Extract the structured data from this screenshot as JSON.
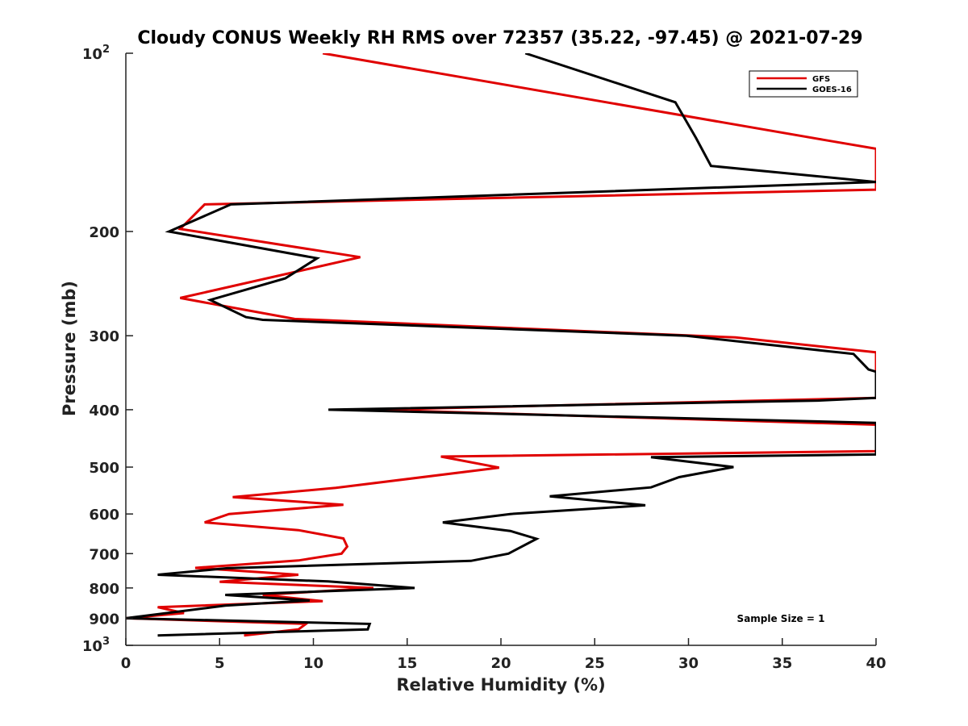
{
  "chart_data": {
    "type": "line",
    "title": "Cloudy CONUS Weekly RH RMS over 72357 (35.22, -97.45) @ 2021-07-29",
    "xlabel": "Relative Humidity (%)",
    "ylabel": "Pressure (mb)",
    "xlim": [
      0,
      40
    ],
    "ylim": [
      1000,
      100
    ],
    "yscale": "log",
    "y_reversed": true,
    "x_ticks": [
      "0",
      "5",
      "10",
      "15",
      "20",
      "25",
      "30",
      "35",
      "40"
    ],
    "y_ticks": [
      {
        "value": 100,
        "base": "10",
        "exp": "2"
      },
      {
        "value": 200,
        "label": "200"
      },
      {
        "value": 300,
        "label": "300"
      },
      {
        "value": 400,
        "label": "400"
      },
      {
        "value": 500,
        "label": "500"
      },
      {
        "value": 600,
        "label": "600"
      },
      {
        "value": 700,
        "label": "700"
      },
      {
        "value": 800,
        "label": "800"
      },
      {
        "value": 900,
        "label": "900"
      },
      {
        "value": 1000,
        "base": "10",
        "exp": "3"
      }
    ],
    "legend_position": "top-right",
    "annotation": "Sample Size = 1",
    "series": [
      {
        "name": "GFS",
        "color": "#e00000",
        "points": [
          [
            10.5,
            100
          ],
          [
            37.2,
            140
          ],
          [
            40.0,
            145
          ],
          [
            40.0,
            170
          ],
          [
            4.2,
            180
          ],
          [
            2.9,
            198
          ],
          [
            12.5,
            221
          ],
          [
            2.9,
            259
          ],
          [
            9.0,
            281
          ],
          [
            32.5,
            302
          ],
          [
            40.0,
            320
          ],
          [
            40.0,
            382
          ],
          [
            13.2,
            400
          ],
          [
            40.0,
            424
          ],
          [
            40.0,
            470
          ],
          [
            16.8,
            480
          ],
          [
            19.9,
            501
          ],
          [
            11.2,
            542
          ],
          [
            5.7,
            562
          ],
          [
            11.6,
            579
          ],
          [
            5.5,
            600
          ],
          [
            4.2,
            620
          ],
          [
            9.2,
            639
          ],
          [
            11.6,
            660
          ],
          [
            11.8,
            681
          ],
          [
            11.5,
            700
          ],
          [
            9.2,
            719
          ],
          [
            3.7,
            740
          ],
          [
            9.2,
            760
          ],
          [
            5.0,
            781
          ],
          [
            13.2,
            800
          ],
          [
            7.3,
            822
          ],
          [
            10.5,
            842
          ],
          [
            1.7,
            862
          ],
          [
            3.1,
            882
          ],
          [
            0.0,
            900
          ],
          [
            9.6,
            920
          ],
          [
            9.2,
            940
          ],
          [
            6.3,
            962
          ]
        ]
      },
      {
        "name": "GOES-16",
        "color": "#000000",
        "points": [
          [
            21.3,
            100
          ],
          [
            29.3,
            121
          ],
          [
            30.4,
            139
          ],
          [
            31.2,
            155
          ],
          [
            40.0,
            165
          ],
          [
            5.6,
            180
          ],
          [
            2.3,
            200
          ],
          [
            10.2,
            222
          ],
          [
            8.5,
            240
          ],
          [
            4.5,
            261
          ],
          [
            6.4,
            279
          ],
          [
            7.3,
            282
          ],
          [
            29.9,
            300
          ],
          [
            38.8,
            322
          ],
          [
            39.6,
            342
          ],
          [
            40.0,
            345
          ],
          [
            40.0,
            382
          ],
          [
            36.9,
            386
          ],
          [
            10.8,
            400
          ],
          [
            40.0,
            421
          ],
          [
            40.0,
            476
          ],
          [
            28.0,
            481
          ],
          [
            32.4,
            500
          ],
          [
            29.5,
            520
          ],
          [
            28.0,
            541
          ],
          [
            22.6,
            560
          ],
          [
            27.7,
            580
          ],
          [
            20.5,
            600
          ],
          [
            16.9,
            620
          ],
          [
            20.5,
            641
          ],
          [
            21.9,
            661
          ],
          [
            20.4,
            700
          ],
          [
            18.4,
            720
          ],
          [
            5.4,
            741
          ],
          [
            1.7,
            760
          ],
          [
            10.8,
            780
          ],
          [
            15.4,
            800
          ],
          [
            5.3,
            822
          ],
          [
            9.8,
            840
          ],
          [
            5.3,
            857
          ],
          [
            0.0,
            900
          ],
          [
            13.0,
            920
          ],
          [
            12.9,
            940
          ],
          [
            1.7,
            962
          ]
        ]
      }
    ]
  }
}
